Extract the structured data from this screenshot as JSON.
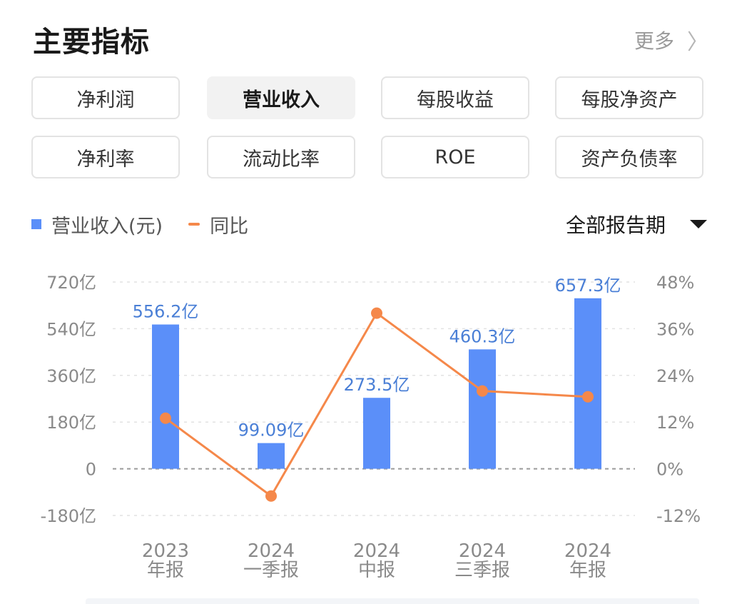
{
  "header": {
    "title": "主要指标",
    "more_label": "更多",
    "more_icon": "chevron-right-icon"
  },
  "tabs": [
    {
      "label": "净利润",
      "active": false
    },
    {
      "label": "营业收入",
      "active": true
    },
    {
      "label": "每股收益",
      "active": false
    },
    {
      "label": "每股净资产",
      "active": false
    },
    {
      "label": "净利率",
      "active": false
    },
    {
      "label": "流动比率",
      "active": false
    },
    {
      "label": "ROE",
      "active": false
    },
    {
      "label": "资产负债率",
      "active": false
    }
  ],
  "legend": {
    "bar_label": "营业收入(元)",
    "line_label": "同比"
  },
  "period_select": {
    "value": "全部报告期"
  },
  "colors": {
    "bar": "#5b8ff9",
    "line": "#f5884a",
    "bar_label": "#4a7fd6",
    "axis_text": "#8a8a8a"
  },
  "chart_data": {
    "type": "bar",
    "categories": [
      [
        "2023",
        "年报"
      ],
      [
        "2024",
        "一季报"
      ],
      [
        "2024",
        "中报"
      ],
      [
        "2024",
        "三季报"
      ],
      [
        "2024",
        "年报"
      ]
    ],
    "series": [
      {
        "name": "营业收入(元)",
        "type": "bar",
        "axis": "left",
        "values": [
          556.2,
          99.09,
          273.5,
          460.3,
          657.3
        ],
        "labels": [
          "556.2亿",
          "99.09亿",
          "273.5亿",
          "460.3亿",
          "657.3亿"
        ]
      },
      {
        "name": "同比",
        "type": "line",
        "axis": "right",
        "values": [
          13.0,
          -7.0,
          40.0,
          20.0,
          18.5
        ]
      }
    ],
    "y_left": {
      "ticks": [
        720,
        540,
        360,
        180,
        0,
        -180
      ],
      "tick_labels": [
        "720亿",
        "540亿",
        "360亿",
        "180亿",
        "0",
        "-180亿"
      ],
      "range": [
        -180,
        720
      ]
    },
    "y_right": {
      "ticks": [
        48,
        36,
        24,
        12,
        0,
        -12
      ],
      "tick_labels": [
        "48%",
        "36%",
        "24%",
        "12%",
        "0%",
        "-12%"
      ],
      "range": [
        -12,
        48
      ]
    },
    "grid": true
  }
}
